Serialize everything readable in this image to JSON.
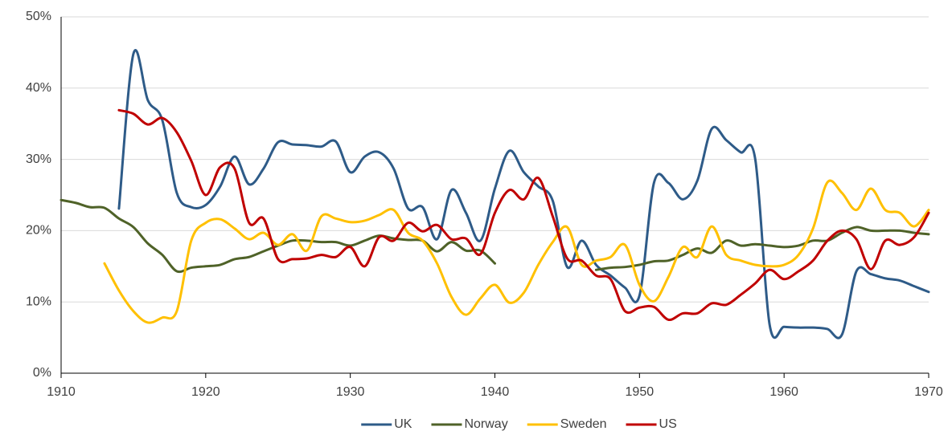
{
  "chart_data": {
    "type": "line",
    "x": [
      1910,
      1911,
      1912,
      1913,
      1914,
      1915,
      1916,
      1917,
      1918,
      1919,
      1920,
      1921,
      1922,
      1923,
      1924,
      1925,
      1926,
      1927,
      1928,
      1929,
      1930,
      1931,
      1932,
      1933,
      1934,
      1935,
      1936,
      1937,
      1938,
      1939,
      1940,
      1941,
      1942,
      1943,
      1944,
      1945,
      1946,
      1947,
      1948,
      1949,
      1950,
      1951,
      1952,
      1953,
      1954,
      1955,
      1956,
      1957,
      1958,
      1959,
      1960,
      1961,
      1962,
      1963,
      1964,
      1965,
      1966,
      1967,
      1968,
      1969,
      1970
    ],
    "series": [
      {
        "name": "UK",
        "color": "#2e5b88",
        "values": [
          null,
          null,
          null,
          null,
          23.1,
          44.8,
          38.3,
          35.5,
          25.3,
          23.3,
          23.6,
          26.2,
          30.4,
          26.5,
          28.7,
          32.4,
          32.1,
          32,
          31.8,
          32.5,
          28.2,
          30.4,
          31,
          28.7,
          23.1,
          23.3,
          18.8,
          25.7,
          22.5,
          18.6,
          25.9,
          31.2,
          28.2,
          26.2,
          24.2,
          14.9,
          18.6,
          15.2,
          13.7,
          12,
          10.9,
          26.7,
          26.7,
          24.4,
          27,
          34.3,
          32.7,
          31,
          30.1,
          6.8,
          6.5,
          6.4,
          6.4,
          6.2,
          5.4,
          14.3,
          13.9,
          13.3,
          13,
          12.2,
          11.4
        ]
      },
      {
        "name": "Norway",
        "color": "#4f6228",
        "values": [
          24.3,
          23.9,
          23.3,
          23.2,
          21.7,
          20.5,
          18.2,
          16.6,
          14.3,
          14.8,
          15,
          15.2,
          16,
          16.3,
          17.1,
          17.9,
          18.6,
          18.6,
          18.4,
          18.4,
          17.9,
          18.6,
          19.3,
          18.9,
          18.7,
          18.6,
          17.1,
          18.4,
          17.2,
          17.2,
          15.4,
          null,
          null,
          null,
          null,
          null,
          null,
          14.5,
          14.8,
          14.9,
          15.2,
          15.7,
          15.8,
          16.6,
          17.5,
          16.9,
          18.6,
          17.9,
          18.1,
          17.9,
          17.7,
          17.9,
          18.6,
          18.6,
          19.7,
          20.5,
          20,
          20,
          20,
          19.7,
          19.5
        ]
      },
      {
        "name": "Sweden",
        "color": "#ffc000",
        "values": [
          null,
          null,
          null,
          15.4,
          11.6,
          8.7,
          7.1,
          7.8,
          8.7,
          18.6,
          21.1,
          21.6,
          20.3,
          18.8,
          19.7,
          18,
          19.5,
          17.2,
          22,
          21.7,
          21.2,
          21.4,
          22.2,
          22.9,
          19.7,
          18.6,
          15.4,
          10.7,
          8.2,
          10.5,
          12.4,
          9.9,
          11.3,
          15.2,
          18.4,
          20.5,
          15.2,
          15.8,
          16.3,
          18,
          12.4,
          10.1,
          13.5,
          17.7,
          16.3,
          20.6,
          16.6,
          15.8,
          15.2,
          15,
          15.2,
          16.6,
          20.3,
          26.8,
          25.3,
          22.9,
          25.9,
          22.9,
          22.5,
          20.6,
          22.9
        ]
      },
      {
        "name": "US",
        "color": "#c00000",
        "values": [
          null,
          null,
          null,
          null,
          36.9,
          36.4,
          34.9,
          35.8,
          33.8,
          29.8,
          25,
          28.9,
          28.7,
          21.1,
          21.7,
          16,
          16,
          16.1,
          16.6,
          16.3,
          17.7,
          15,
          19.1,
          18.6,
          21.1,
          19.9,
          20.8,
          18.8,
          18.9,
          16.7,
          22.5,
          25.7,
          24.4,
          27.4,
          22,
          16.1,
          15.8,
          13.7,
          13.2,
          8.7,
          9.2,
          9.3,
          7.5,
          8.4,
          8.4,
          9.8,
          9.6,
          11,
          12.6,
          14.5,
          13.2,
          14.3,
          15.8,
          18.6,
          20,
          18.8,
          14.6,
          18.6,
          18,
          19.1,
          22.5
        ]
      }
    ],
    "xlim": [
      1910,
      1970
    ],
    "xticks": [
      1910,
      1920,
      1930,
      1940,
      1950,
      1960,
      1970
    ],
    "ylim": [
      0,
      50
    ],
    "yticks": [
      {
        "value": 0,
        "label": "0%"
      },
      {
        "value": 10,
        "label": "10%"
      },
      {
        "value": 20,
        "label": "20%"
      },
      {
        "value": 30,
        "label": "30%"
      },
      {
        "value": 40,
        "label": "40%"
      },
      {
        "value": 50,
        "label": "50%"
      }
    ],
    "grid": true,
    "legend": "bottom"
  }
}
